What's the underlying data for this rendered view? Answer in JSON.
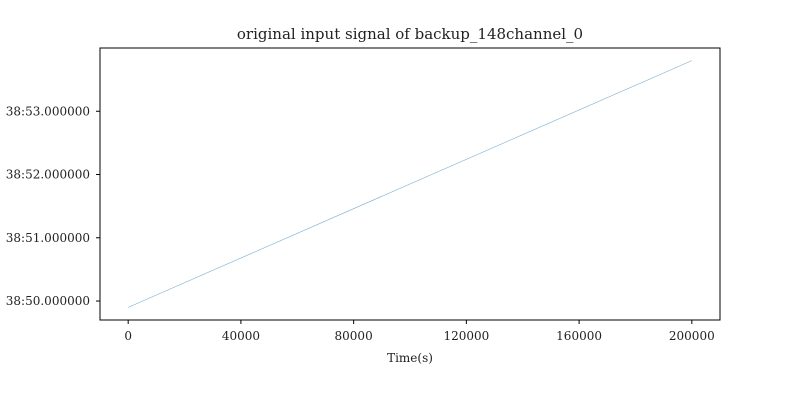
{
  "chart_data": {
    "type": "line",
    "title": "original input signal of backup_148channel_0",
    "xlabel": "Time(s)",
    "ylabel": "",
    "x_ticks": [
      0,
      40000,
      80000,
      120000,
      160000,
      200000
    ],
    "x_tick_labels": [
      "0",
      "40000",
      "80000",
      "120000",
      "160000",
      "200000"
    ],
    "y_ticks": [
      50,
      51,
      52,
      53
    ],
    "y_tick_labels": [
      "38:50.000000",
      "38:51.000000",
      "38:52.000000",
      "38:53.000000"
    ],
    "xlim": [
      -10000,
      210000
    ],
    "ylim": [
      49.7,
      54.0
    ],
    "grid": false,
    "series": [
      {
        "color": "#1f77b4",
        "x": [
          0,
          200000
        ],
        "y": [
          49.9,
          53.8
        ]
      }
    ]
  }
}
